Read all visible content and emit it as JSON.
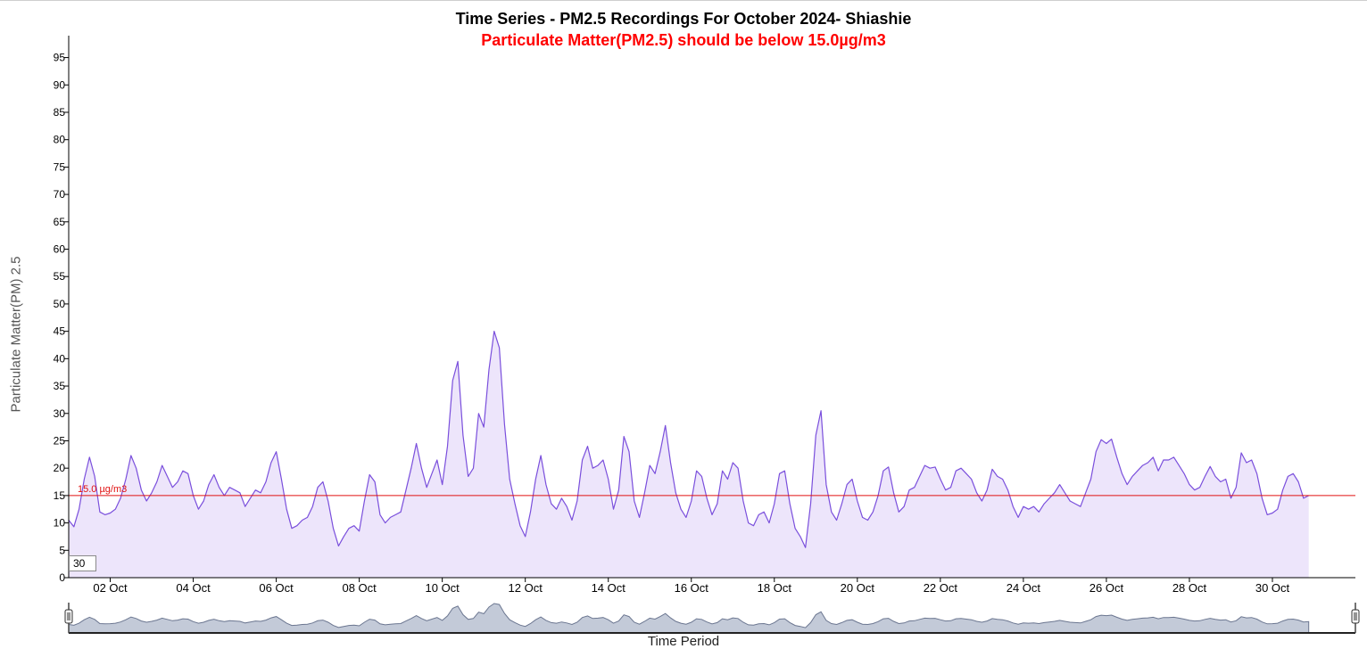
{
  "chart_data": {
    "type": "area",
    "title": "Time Series - PM2.5 Recordings For October 2024- Shiashie",
    "subtitle": "Particulate Matter(PM2.5) should be below 15.0µg/m3",
    "ylabel": "Particulate Matter(PM) 2.5",
    "xlabel": "Time Period",
    "ylim": [
      0,
      99
    ],
    "xlim": [
      "2024-10-01",
      "2024-10-31 23:59"
    ],
    "y_ticks": [
      0,
      5,
      10,
      15,
      20,
      25,
      30,
      35,
      40,
      45,
      50,
      55,
      60,
      65,
      70,
      75,
      80,
      85,
      90,
      95
    ],
    "x_ticks": [
      "02 Oct",
      "04 Oct",
      "06 Oct",
      "08 Oct",
      "10 Oct",
      "12 Oct",
      "14 Oct",
      "16 Oct",
      "18 Oct",
      "20 Oct",
      "22 Oct",
      "24 Oct",
      "26 Oct",
      "28 Oct",
      "30 Oct"
    ],
    "grid": false,
    "threshold": {
      "value": 15.0,
      "label": "15.0 µg/m3"
    },
    "rolling_period": "30",
    "line_color": "#7a4fdc",
    "fill_color": "#ede5fb",
    "threshold_color": "#e01010",
    "series": [
      {
        "name": "PM2.5",
        "points": [
          [
            "2024-10-01 00:00",
            10.5
          ],
          [
            "2024-10-01 03:00",
            9.3
          ],
          [
            "2024-10-01 06:00",
            12.5
          ],
          [
            "2024-10-01 09:00",
            18.0
          ],
          [
            "2024-10-01 12:00",
            22.0
          ],
          [
            "2024-10-01 15:00",
            18.5
          ],
          [
            "2024-10-01 18:00",
            12.0
          ],
          [
            "2024-10-01 21:00",
            11.5
          ],
          [
            "2024-10-02 00:00",
            11.8
          ],
          [
            "2024-10-02 03:00",
            12.5
          ],
          [
            "2024-10-02 06:00",
            14.5
          ],
          [
            "2024-10-02 09:00",
            18.0
          ],
          [
            "2024-10-02 12:00",
            22.3
          ],
          [
            "2024-10-02 15:00",
            20.0
          ],
          [
            "2024-10-02 18:00",
            16.0
          ],
          [
            "2024-10-02 21:00",
            14.0
          ],
          [
            "2024-10-03 00:00",
            15.5
          ],
          [
            "2024-10-03 03:00",
            17.5
          ],
          [
            "2024-10-03 06:00",
            20.5
          ],
          [
            "2024-10-03 09:00",
            18.5
          ],
          [
            "2024-10-03 12:00",
            16.5
          ],
          [
            "2024-10-03 15:00",
            17.5
          ],
          [
            "2024-10-03 18:00",
            19.5
          ],
          [
            "2024-10-03 21:00",
            19.0
          ],
          [
            "2024-10-04 00:00",
            15.0
          ],
          [
            "2024-10-04 03:00",
            12.5
          ],
          [
            "2024-10-04 06:00",
            14.0
          ],
          [
            "2024-10-04 09:00",
            17.0
          ],
          [
            "2024-10-04 12:00",
            18.8
          ],
          [
            "2024-10-04 15:00",
            16.5
          ],
          [
            "2024-10-04 18:00",
            15.0
          ],
          [
            "2024-10-04 21:00",
            16.5
          ],
          [
            "2024-10-05 00:00",
            16.0
          ],
          [
            "2024-10-05 03:00",
            15.5
          ],
          [
            "2024-10-05 06:00",
            13.0
          ],
          [
            "2024-10-05 09:00",
            14.5
          ],
          [
            "2024-10-05 12:00",
            16.0
          ],
          [
            "2024-10-05 15:00",
            15.5
          ],
          [
            "2024-10-05 18:00",
            17.5
          ],
          [
            "2024-10-05 21:00",
            21.0
          ],
          [
            "2024-10-06 00:00",
            23.0
          ],
          [
            "2024-10-06 03:00",
            18.0
          ],
          [
            "2024-10-06 06:00",
            12.5
          ],
          [
            "2024-10-06 09:00",
            9.0
          ],
          [
            "2024-10-06 12:00",
            9.5
          ],
          [
            "2024-10-06 15:00",
            10.5
          ],
          [
            "2024-10-06 18:00",
            11.0
          ],
          [
            "2024-10-06 21:00",
            13.0
          ],
          [
            "2024-10-07 00:00",
            16.5
          ],
          [
            "2024-10-07 03:00",
            17.5
          ],
          [
            "2024-10-07 06:00",
            14.0
          ],
          [
            "2024-10-07 09:00",
            9.0
          ],
          [
            "2024-10-07 12:00",
            5.8
          ],
          [
            "2024-10-07 15:00",
            7.5
          ],
          [
            "2024-10-07 18:00",
            9.0
          ],
          [
            "2024-10-07 21:00",
            9.5
          ],
          [
            "2024-10-08 00:00",
            8.5
          ],
          [
            "2024-10-08 03:00",
            14.0
          ],
          [
            "2024-10-08 06:00",
            18.8
          ],
          [
            "2024-10-08 09:00",
            17.5
          ],
          [
            "2024-10-08 12:00",
            11.5
          ],
          [
            "2024-10-08 15:00",
            10.0
          ],
          [
            "2024-10-08 18:00",
            11.0
          ],
          [
            "2024-10-08 21:00",
            11.5
          ],
          [
            "2024-10-09 00:00",
            12.0
          ],
          [
            "2024-10-09 03:00",
            16.0
          ],
          [
            "2024-10-09 06:00",
            20.0
          ],
          [
            "2024-10-09 09:00",
            24.5
          ],
          [
            "2024-10-09 12:00",
            20.0
          ],
          [
            "2024-10-09 15:00",
            16.5
          ],
          [
            "2024-10-09 18:00",
            19.0
          ],
          [
            "2024-10-09 21:00",
            21.5
          ],
          [
            "2024-10-10 00:00",
            17.0
          ],
          [
            "2024-10-10 03:00",
            24.0
          ],
          [
            "2024-10-10 06:00",
            36.0
          ],
          [
            "2024-10-10 09:00",
            39.5
          ],
          [
            "2024-10-10 12:00",
            26.0
          ],
          [
            "2024-10-10 15:00",
            18.5
          ],
          [
            "2024-10-10 18:00",
            20.0
          ],
          [
            "2024-10-10 21:00",
            30.0
          ],
          [
            "2024-10-11 00:00",
            27.5
          ],
          [
            "2024-10-11 03:00",
            38.0
          ],
          [
            "2024-10-11 06:00",
            45.0
          ],
          [
            "2024-10-11 09:00",
            42.0
          ],
          [
            "2024-10-11 12:00",
            28.0
          ],
          [
            "2024-10-11 15:00",
            18.0
          ],
          [
            "2024-10-11 18:00",
            13.5
          ],
          [
            "2024-10-11 21:00",
            9.5
          ],
          [
            "2024-10-12 00:00",
            7.5
          ],
          [
            "2024-10-12 03:00",
            12.0
          ],
          [
            "2024-10-12 06:00",
            18.0
          ],
          [
            "2024-10-12 09:00",
            22.3
          ],
          [
            "2024-10-12 12:00",
            17.0
          ],
          [
            "2024-10-12 15:00",
            13.5
          ],
          [
            "2024-10-12 18:00",
            12.5
          ],
          [
            "2024-10-12 21:00",
            14.5
          ],
          [
            "2024-10-13 00:00",
            13.0
          ],
          [
            "2024-10-13 03:00",
            10.5
          ],
          [
            "2024-10-13 06:00",
            14.0
          ],
          [
            "2024-10-13 09:00",
            21.5
          ],
          [
            "2024-10-13 12:00",
            24.0
          ],
          [
            "2024-10-13 15:00",
            20.0
          ],
          [
            "2024-10-13 18:00",
            20.5
          ],
          [
            "2024-10-13 21:00",
            21.5
          ],
          [
            "2024-10-14 00:00",
            18.0
          ],
          [
            "2024-10-14 03:00",
            12.5
          ],
          [
            "2024-10-14 06:00",
            16.0
          ],
          [
            "2024-10-14 09:00",
            25.8
          ],
          [
            "2024-10-14 12:00",
            23.0
          ],
          [
            "2024-10-14 15:00",
            14.0
          ],
          [
            "2024-10-14 18:00",
            11.0
          ],
          [
            "2024-10-14 21:00",
            15.5
          ],
          [
            "2024-10-15 00:00",
            20.5
          ],
          [
            "2024-10-15 03:00",
            19.0
          ],
          [
            "2024-10-15 06:00",
            23.0
          ],
          [
            "2024-10-15 09:00",
            27.8
          ],
          [
            "2024-10-15 12:00",
            21.0
          ],
          [
            "2024-10-15 15:00",
            15.5
          ],
          [
            "2024-10-15 18:00",
            12.5
          ],
          [
            "2024-10-15 21:00",
            11.0
          ],
          [
            "2024-10-16 00:00",
            14.0
          ],
          [
            "2024-10-16 03:00",
            19.5
          ],
          [
            "2024-10-16 06:00",
            18.5
          ],
          [
            "2024-10-16 09:00",
            14.5
          ],
          [
            "2024-10-16 12:00",
            11.5
          ],
          [
            "2024-10-16 15:00",
            13.5
          ],
          [
            "2024-10-16 18:00",
            19.5
          ],
          [
            "2024-10-16 21:00",
            18.0
          ],
          [
            "2024-10-17 00:00",
            21.0
          ],
          [
            "2024-10-17 03:00",
            20.0
          ],
          [
            "2024-10-17 06:00",
            14.0
          ],
          [
            "2024-10-17 09:00",
            10.0
          ],
          [
            "2024-10-17 12:00",
            9.5
          ],
          [
            "2024-10-17 15:00",
            11.5
          ],
          [
            "2024-10-17 18:00",
            12.0
          ],
          [
            "2024-10-17 21:00",
            10.0
          ],
          [
            "2024-10-18 00:00",
            13.5
          ],
          [
            "2024-10-18 03:00",
            19.0
          ],
          [
            "2024-10-18 06:00",
            19.5
          ],
          [
            "2024-10-18 09:00",
            13.5
          ],
          [
            "2024-10-18 12:00",
            9.0
          ],
          [
            "2024-10-18 15:00",
            7.5
          ],
          [
            "2024-10-18 18:00",
            5.5
          ],
          [
            "2024-10-18 21:00",
            13.5
          ],
          [
            "2024-10-19 00:00",
            26.0
          ],
          [
            "2024-10-19 03:00",
            30.5
          ],
          [
            "2024-10-19 06:00",
            17.0
          ],
          [
            "2024-10-19 09:00",
            12.0
          ],
          [
            "2024-10-19 12:00",
            10.5
          ],
          [
            "2024-10-19 15:00",
            13.5
          ],
          [
            "2024-10-19 18:00",
            17.0
          ],
          [
            "2024-10-19 21:00",
            18.0
          ],
          [
            "2024-10-20 00:00",
            14.0
          ],
          [
            "2024-10-20 03:00",
            11.0
          ],
          [
            "2024-10-20 06:00",
            10.5
          ],
          [
            "2024-10-20 09:00",
            12.0
          ],
          [
            "2024-10-20 12:00",
            15.0
          ],
          [
            "2024-10-20 15:00",
            19.5
          ],
          [
            "2024-10-20 18:00",
            20.2
          ],
          [
            "2024-10-20 21:00",
            15.5
          ],
          [
            "2024-10-21 00:00",
            12.0
          ],
          [
            "2024-10-21 03:00",
            13.0
          ],
          [
            "2024-10-21 06:00",
            16.0
          ],
          [
            "2024-10-21 09:00",
            16.5
          ],
          [
            "2024-10-21 12:00",
            18.5
          ],
          [
            "2024-10-21 15:00",
            20.5
          ],
          [
            "2024-10-21 18:00",
            20.0
          ],
          [
            "2024-10-21 21:00",
            20.2
          ],
          [
            "2024-10-22 00:00",
            18.0
          ],
          [
            "2024-10-22 03:00",
            16.0
          ],
          [
            "2024-10-22 06:00",
            16.5
          ],
          [
            "2024-10-22 09:00",
            19.5
          ],
          [
            "2024-10-22 12:00",
            20.0
          ],
          [
            "2024-10-22 15:00",
            19.0
          ],
          [
            "2024-10-22 18:00",
            18.0
          ],
          [
            "2024-10-22 21:00",
            15.5
          ],
          [
            "2024-10-23 00:00",
            14.0
          ],
          [
            "2024-10-23 03:00",
            16.0
          ],
          [
            "2024-10-23 06:00",
            19.8
          ],
          [
            "2024-10-23 09:00",
            18.5
          ],
          [
            "2024-10-23 12:00",
            18.0
          ],
          [
            "2024-10-23 15:00",
            16.0
          ],
          [
            "2024-10-23 18:00",
            13.0
          ],
          [
            "2024-10-23 21:00",
            11.0
          ],
          [
            "2024-10-24 00:00",
            13.0
          ],
          [
            "2024-10-24 03:00",
            12.5
          ],
          [
            "2024-10-24 06:00",
            13.0
          ],
          [
            "2024-10-24 09:00",
            12.0
          ],
          [
            "2024-10-24 12:00",
            13.5
          ],
          [
            "2024-10-24 15:00",
            14.5
          ],
          [
            "2024-10-24 18:00",
            15.5
          ],
          [
            "2024-10-24 21:00",
            17.0
          ],
          [
            "2024-10-25 00:00",
            15.5
          ],
          [
            "2024-10-25 03:00",
            14.0
          ],
          [
            "2024-10-25 06:00",
            13.5
          ],
          [
            "2024-10-25 09:00",
            13.0
          ],
          [
            "2024-10-25 12:00",
            15.5
          ],
          [
            "2024-10-25 15:00",
            18.0
          ],
          [
            "2024-10-25 18:00",
            23.0
          ],
          [
            "2024-10-25 21:00",
            25.2
          ],
          [
            "2024-10-26 00:00",
            24.5
          ],
          [
            "2024-10-26 03:00",
            25.3
          ],
          [
            "2024-10-26 06:00",
            22.0
          ],
          [
            "2024-10-26 09:00",
            19.0
          ],
          [
            "2024-10-26 12:00",
            17.0
          ],
          [
            "2024-10-26 15:00",
            18.5
          ],
          [
            "2024-10-26 18:00",
            19.5
          ],
          [
            "2024-10-26 21:00",
            20.5
          ],
          [
            "2024-10-27 00:00",
            21.0
          ],
          [
            "2024-10-27 03:00",
            22.0
          ],
          [
            "2024-10-27 06:00",
            19.5
          ],
          [
            "2024-10-27 09:00",
            21.5
          ],
          [
            "2024-10-27 12:00",
            21.5
          ],
          [
            "2024-10-27 15:00",
            22.0
          ],
          [
            "2024-10-27 18:00",
            20.5
          ],
          [
            "2024-10-27 21:00",
            19.0
          ],
          [
            "2024-10-28 00:00",
            17.0
          ],
          [
            "2024-10-28 03:00",
            16.0
          ],
          [
            "2024-10-28 06:00",
            16.5
          ],
          [
            "2024-10-28 09:00",
            18.5
          ],
          [
            "2024-10-28 12:00",
            20.3
          ],
          [
            "2024-10-28 15:00",
            18.5
          ],
          [
            "2024-10-28 18:00",
            17.5
          ],
          [
            "2024-10-28 21:00",
            18.0
          ],
          [
            "2024-10-29 00:00",
            14.5
          ],
          [
            "2024-10-29 03:00",
            16.5
          ],
          [
            "2024-10-29 06:00",
            22.8
          ],
          [
            "2024-10-29 09:00",
            21.0
          ],
          [
            "2024-10-29 12:00",
            21.5
          ],
          [
            "2024-10-29 15:00",
            19.0
          ],
          [
            "2024-10-29 18:00",
            14.5
          ],
          [
            "2024-10-29 21:00",
            11.5
          ],
          [
            "2024-10-30 00:00",
            11.8
          ],
          [
            "2024-10-30 03:00",
            12.5
          ],
          [
            "2024-10-30 06:00",
            16.0
          ],
          [
            "2024-10-30 09:00",
            18.5
          ],
          [
            "2024-10-30 12:00",
            19.0
          ],
          [
            "2024-10-30 15:00",
            17.5
          ],
          [
            "2024-10-30 18:00",
            14.5
          ],
          [
            "2024-10-30 21:00",
            15.0
          ]
        ]
      }
    ]
  },
  "navigator": {
    "left_handle_icon": "drag-handle-icon",
    "right_handle_icon": "drag-handle-icon"
  }
}
